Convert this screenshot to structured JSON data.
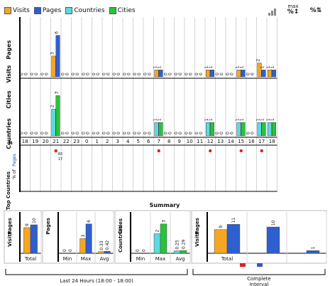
{
  "legend": [
    {
      "label": "Visits",
      "color": "#f5a623"
    },
    {
      "label": "Pages",
      "color": "#2e5fd1"
    },
    {
      "label": "Countries",
      "color": "#5ed8e0"
    },
    {
      "label": "Cities",
      "color": "#27c43a"
    }
  ],
  "toolbar": {
    "max_label": "max",
    "icons": [
      "bar-chart-icon",
      "max-scale-icon",
      "percent-scale-icon"
    ]
  },
  "hour_axis_label": "h",
  "top_countries": {
    "title": "Top Countries",
    "subtitle": "% of",
    "subtitle_link": "Pages"
  },
  "summary_title": "Summary",
  "footer": {
    "last24": "Last 24 Hours (18:00 - 18:00)",
    "complete": "Complete Interval"
  },
  "chart_data": [
    {
      "type": "bar",
      "title": "Visits / Pages per hour",
      "ylabel": "Visits  Pages",
      "categories": [
        "18",
        "19",
        "20",
        "21",
        "22",
        "23",
        "0",
        "1",
        "2",
        "3",
        "4",
        "5",
        "6",
        "7",
        "8",
        "9",
        "10",
        "11",
        "12",
        "13",
        "14",
        "15",
        "16",
        "17",
        "18"
      ],
      "series": [
        {
          "name": "Visits",
          "values": [
            0,
            0,
            0,
            3,
            0,
            0,
            0,
            0,
            0,
            0,
            0,
            0,
            0,
            1,
            0,
            0,
            0,
            0,
            1,
            0,
            0,
            1,
            0,
            2,
            1
          ]
        },
        {
          "name": "Pages",
          "values": [
            0,
            0,
            0,
            6,
            0,
            0,
            0,
            0,
            0,
            0,
            0,
            0,
            0,
            1,
            0,
            0,
            0,
            0,
            1,
            0,
            0,
            1,
            0,
            1,
            1
          ]
        }
      ],
      "ylim": [
        0,
        7
      ]
    },
    {
      "type": "bar",
      "title": "Countries / Cities per hour",
      "ylabel": "Countries  Cities",
      "categories": [
        "18",
        "19",
        "20",
        "21",
        "22",
        "23",
        "0",
        "1",
        "2",
        "3",
        "4",
        "5",
        "6",
        "7",
        "8",
        "9",
        "10",
        "11",
        "12",
        "13",
        "14",
        "15",
        "16",
        "17",
        "18"
      ],
      "series": [
        {
          "name": "Countries",
          "values": [
            0,
            0,
            0,
            2,
            0,
            0,
            0,
            0,
            0,
            0,
            0,
            0,
            0,
            1,
            0,
            0,
            0,
            0,
            1,
            0,
            0,
            1,
            0,
            1,
            1
          ]
        },
        {
          "name": "Cities",
          "values": [
            0,
            0,
            0,
            3,
            0,
            0,
            0,
            0,
            0,
            0,
            0,
            0,
            0,
            1,
            0,
            0,
            0,
            0,
            1,
            0,
            0,
            1,
            0,
            1,
            1
          ]
        }
      ],
      "ylim": [
        0,
        3.5
      ]
    },
    {
      "type": "table",
      "title": "Top Countries % of Pages",
      "rows": [
        {
          "hour": "21",
          "labels": [
            "83",
            "17"
          ]
        },
        {
          "hour": "7",
          "labels": []
        },
        {
          "hour": "12",
          "labels": []
        },
        {
          "hour": "15",
          "labels": []
        },
        {
          "hour": "17",
          "labels": []
        }
      ]
    },
    {
      "type": "bar",
      "title": "Summary Visits Pages Total",
      "categories": [
        "Total"
      ],
      "series": [
        {
          "name": "Visits",
          "values": [
            9
          ]
        },
        {
          "name": "Pages",
          "values": [
            10
          ]
        }
      ],
      "ylim": [
        0,
        12
      ]
    },
    {
      "type": "bar",
      "title": "Summary Pages Min/Max/Avg",
      "categories": [
        "Min",
        "Max",
        "Avg"
      ],
      "series": [
        {
          "name": "Visits",
          "values": [
            0,
            3,
            0.33
          ]
        },
        {
          "name": "Pages",
          "values": [
            0,
            6,
            0.42
          ]
        }
      ],
      "ylim": [
        0,
        7
      ]
    },
    {
      "type": "bar",
      "title": "Summary Countries Cities Min/Max/Avg",
      "categories": [
        "Min",
        "Max",
        "Avg"
      ],
      "series": [
        {
          "name": "Countries",
          "values": [
            0,
            2,
            0.25
          ]
        },
        {
          "name": "Cities",
          "values": [
            0,
            3,
            0.29
          ]
        }
      ],
      "ylim": [
        0,
        3.5
      ]
    },
    {
      "type": "bar",
      "title": "Summary Complete Interval",
      "categories": [
        "Total",
        "",
        ""
      ],
      "series": [
        {
          "name": "Visits",
          "values": [
            9,
            0,
            0
          ]
        },
        {
          "name": "Pages",
          "values": [
            11,
            10,
            1
          ]
        }
      ],
      "ylim": [
        0,
        13
      ]
    }
  ]
}
